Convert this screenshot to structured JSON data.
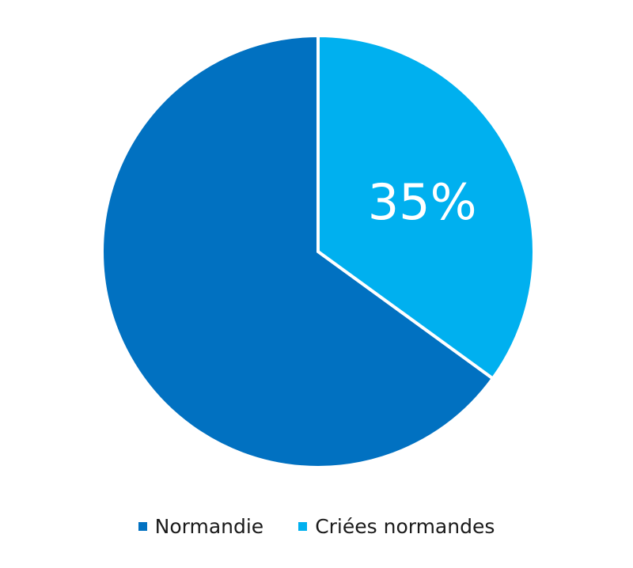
{
  "chart_data": {
    "type": "pie",
    "title": "",
    "slices": [
      {
        "label": "Normandie",
        "value": 65,
        "color": "#0171c1",
        "data_label": ""
      },
      {
        "label": "Criées normandes",
        "value": 35,
        "color": "#00b0ef",
        "data_label": "35%"
      }
    ],
    "start_angle_deg": 0,
    "direction": "counterclockwise",
    "slice_separator_color": "#ffffff",
    "legend_position": "bottom"
  }
}
